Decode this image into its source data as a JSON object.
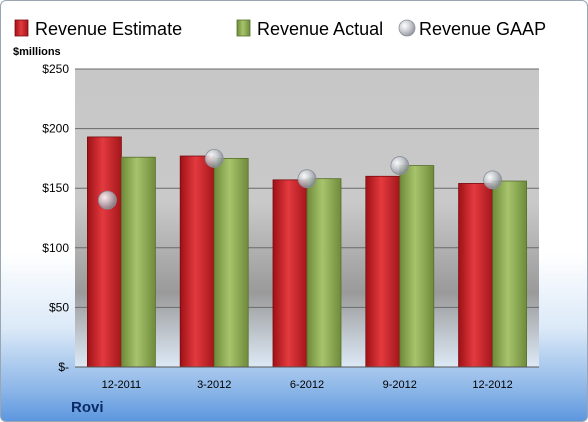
{
  "chart_data": {
    "type": "bar",
    "ylabel": "$millions",
    "ylim": [
      0,
      250
    ],
    "yticks": [
      0,
      50,
      100,
      150,
      200,
      250
    ],
    "ytick_labels": [
      "$-",
      "$50",
      "$100",
      "$150",
      "$200",
      "$250"
    ],
    "categories": [
      "12-2011",
      "3-2012",
      "6-2012",
      "9-2012",
      "12-2012"
    ],
    "series": [
      {
        "name": "Revenue Estimate",
        "kind": "bar",
        "color": "#d42027",
        "values": [
          193,
          177,
          157,
          160,
          154
        ]
      },
      {
        "name": "Revenue Actual",
        "kind": "bar",
        "color": "#8fad55",
        "values": [
          176,
          175,
          158,
          169,
          156
        ]
      },
      {
        "name": "Revenue GAAP",
        "kind": "marker",
        "color": "#b8bcc4",
        "values": [
          140,
          175,
          158,
          169,
          157
        ]
      }
    ],
    "grid": true,
    "legend": "top"
  },
  "company": "Rovi"
}
